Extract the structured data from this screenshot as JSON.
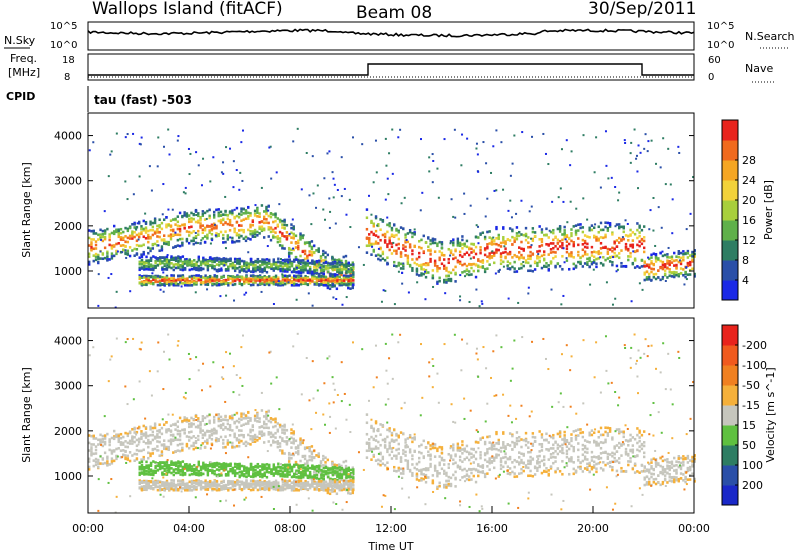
{
  "header": {
    "site": "Wallops Island (fitACF)",
    "beam": "Beam 08",
    "date": "30/Sep/2011"
  },
  "aux": {
    "nsky_label": "N.Sky",
    "nsearch_label": "N.Search",
    "freq_label_line1": "Freq.",
    "freq_label_line2": "[MHz]",
    "nave_label": "Nave",
    "cpid_label": "CPID",
    "cpid_text": "tau (fast) -503",
    "noise_ticks_left": [
      "10^5",
      "10^0"
    ],
    "noise_ticks_right": [
      "10^5",
      "10^0"
    ],
    "freq_ticks_left": [
      "18",
      "8"
    ],
    "nave_ticks_right": [
      "60",
      "0"
    ]
  },
  "chart_data": [
    {
      "type": "heatmap",
      "quantity": "Power",
      "ylabel": "Slant Range [km]",
      "yticks": [
        1000,
        2000,
        3000,
        4000
      ],
      "ylim": [
        180,
        4500
      ],
      "colorbar": {
        "label": "Power [dB]",
        "ticks": [
          4,
          8,
          12,
          16,
          20,
          24,
          28
        ],
        "colors": [
          "#1a28e6",
          "#2a4fa8",
          "#2e7d63",
          "#5fb04a",
          "#a8cf3c",
          "#f2d23a",
          "#f5a623",
          "#f06a1e",
          "#e8231c"
        ]
      }
    },
    {
      "type": "heatmap",
      "quantity": "Velocity",
      "ylabel": "Slant Range [km]",
      "yticks": [
        1000,
        2000,
        3000,
        4000
      ],
      "ylim": [
        180,
        4500
      ],
      "colorbar": {
        "label": "Velocity [m s^-1]",
        "ticks": [
          "200",
          "100",
          "50",
          "15",
          "-15",
          "-50",
          "-100",
          "-200"
        ],
        "colors": [
          "#1a28c8",
          "#2a4fa8",
          "#2e7d63",
          "#5fc040",
          "#c6c6bd",
          "#f5b03a",
          "#f08020",
          "#f05a1e",
          "#e8231c"
        ]
      }
    }
  ],
  "time_axis": {
    "xlabel": "Time UT",
    "ticks": [
      "00:00",
      "04:00",
      "08:00",
      "12:00",
      "16:00",
      "20:00",
      "00:00"
    ],
    "xlim_hours": [
      0,
      24
    ]
  },
  "echo_regions": {
    "power_bands": [
      {
        "t": [
          0,
          2,
          4,
          6,
          7,
          9.5,
          10.5
        ],
        "r": [
          1550,
          1750,
          2000,
          2050,
          2150,
          1000,
          1000
        ],
        "w": 380,
        "core": 0.82
      },
      {
        "t": [
          2,
          4,
          6,
          8,
          10.5
        ],
        "r": [
          1200,
          1200,
          1150,
          1150,
          1050
        ],
        "w": 150,
        "core": 0.4
      },
      {
        "t": [
          2,
          4,
          6,
          8,
          10.5
        ],
        "r": [
          820,
          820,
          820,
          820,
          820
        ],
        "w": 110,
        "core": 0.9
      },
      {
        "t": [
          11,
          12,
          14,
          15.5,
          16,
          17,
          20,
          22
        ],
        "r": [
          1900,
          1600,
          1200,
          1400,
          1500,
          1500,
          1600,
          1600
        ],
        "w": 500,
        "core": 0.95
      },
      {
        "t": [
          22,
          24
        ],
        "r": [
          1100,
          1200
        ],
        "w": 300,
        "core": 0.9
      }
    ]
  },
  "colors": {
    "frame": "#000000",
    "background": "#ffffff"
  }
}
